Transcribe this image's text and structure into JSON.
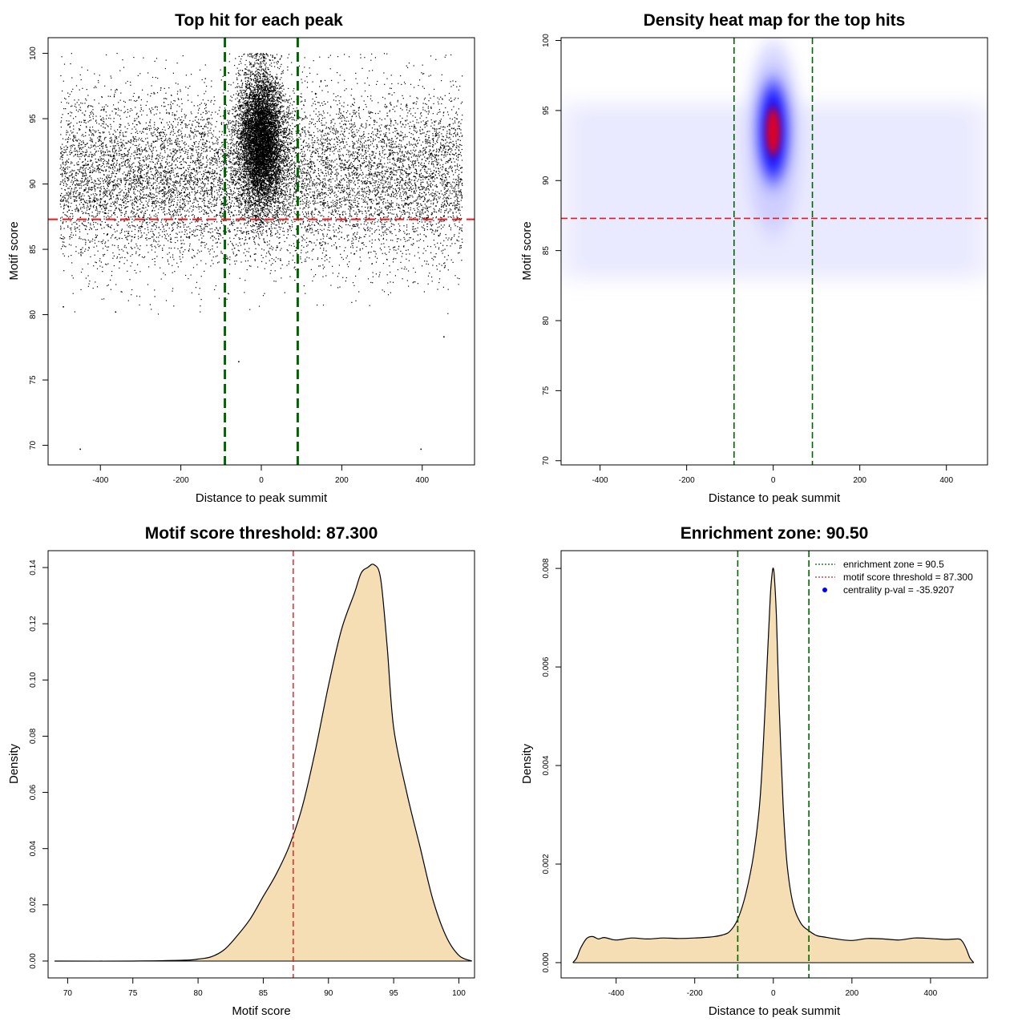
{
  "chart_data": [
    {
      "type": "scatter",
      "title": "Top hit for each peak",
      "xlabel": "Distance to peak summit",
      "ylabel": "Motif score",
      "xlim": [
        -530,
        530
      ],
      "ylim": [
        68.5,
        101.2
      ],
      "xticks": [
        -400,
        -200,
        0,
        200,
        400
      ],
      "yticks": [
        70,
        75,
        80,
        85,
        90,
        95,
        100
      ],
      "grid": false,
      "points_approx": 18000,
      "distribution": {
        "background_x_range": [
          -500,
          500
        ],
        "background_score_mean": 90.5,
        "background_score_sd": 3.3,
        "center_x_sd": 28,
        "center_score_mean": 93.3,
        "center_score_sd": 2.6,
        "center_fraction": 0.42
      },
      "outliers": [
        {
          "x": -450,
          "y": 69.7
        },
        {
          "x": 397,
          "y": 69.7
        },
        {
          "x": -56,
          "y": 76.4
        },
        {
          "x": 454,
          "y": 78.3
        },
        {
          "x": -492,
          "y": 80.6
        },
        {
          "x": -362,
          "y": 80.2
        }
      ],
      "vlines": [
        -90.5,
        90.5
      ],
      "hline": 87.3,
      "colors": {
        "points": "#000000",
        "vlines": "#006400",
        "hline": "#e41a1c"
      }
    },
    {
      "type": "heatmap",
      "title": "Density heat map for the top hits",
      "xlabel": "Distance to peak summit",
      "ylabel": "Motif score",
      "xlim": [
        -490,
        495
      ],
      "ylim": [
        69.7,
        100.2
      ],
      "xticks": [
        -400,
        -200,
        0,
        200,
        400
      ],
      "yticks": [
        70,
        75,
        80,
        85,
        90,
        95,
        100
      ],
      "grid": false,
      "density_peak": {
        "x": 0,
        "y": 93.5
      },
      "vlines": [
        -90.5,
        90.5
      ],
      "hline": 87.3,
      "colors": {
        "low": "#ffffff",
        "mid": "#0000ff",
        "high": "#ff0000",
        "vlines": "#006400",
        "hline": "#e41a1c"
      }
    },
    {
      "type": "area",
      "title": "Motif score threshold: 87.300",
      "xlabel": "Motif score",
      "ylabel": "Density",
      "xlim": [
        68.5,
        101.2
      ],
      "ylim": [
        -0.006,
        0.146
      ],
      "xticks": [
        70,
        75,
        80,
        85,
        90,
        95,
        100
      ],
      "yticks": [
        0.0,
        0.02,
        0.04,
        0.06,
        0.08,
        0.1,
        0.12,
        0.14
      ],
      "ytick_labels": [
        "0.00",
        "0.02",
        "0.04",
        "0.06",
        "0.08",
        "0.10",
        "0.12",
        "0.14"
      ],
      "grid": false,
      "x": [
        69,
        75,
        79,
        80,
        81,
        82,
        83,
        84,
        85,
        86,
        87,
        88,
        89,
        90,
        91,
        92,
        92.5,
        93,
        93.5,
        94,
        94.5,
        95,
        96,
        97,
        98,
        99,
        100,
        101
      ],
      "y": [
        0,
        0,
        0.0003,
        0.0007,
        0.0015,
        0.004,
        0.009,
        0.015,
        0.023,
        0.031,
        0.041,
        0.055,
        0.075,
        0.098,
        0.118,
        0.131,
        0.138,
        0.14,
        0.141,
        0.136,
        0.112,
        0.083,
        0.06,
        0.041,
        0.022,
        0.009,
        0.002,
        0
      ],
      "vline": 87.3,
      "colors": {
        "fill": "#f5deb3",
        "line": "#000000",
        "vline": "#e41a1c"
      }
    },
    {
      "type": "area",
      "title": "Enrichment zone: 90.50",
      "xlabel": "Distance to peak summit",
      "ylabel": "Density",
      "xlim": [
        -540,
        545
      ],
      "ylim": [
        -0.00031,
        0.00836
      ],
      "xticks": [
        -400,
        -200,
        0,
        200,
        400
      ],
      "yticks": [
        0.0,
        0.002,
        0.004,
        0.006,
        0.008
      ],
      "ytick_labels": [
        "0.000",
        "0.002",
        "0.004",
        "0.006",
        "0.008"
      ],
      "grid": false,
      "x": [
        -510,
        -500,
        -490,
        -475,
        -460,
        -445,
        -430,
        -400,
        -360,
        -320,
        -280,
        -240,
        -200,
        -160,
        -130,
        -110,
        -90,
        -70,
        -50,
        -35,
        -25,
        -15,
        -8,
        -3,
        0,
        3,
        8,
        15,
        25,
        35,
        50,
        70,
        90,
        110,
        130,
        160,
        200,
        240,
        280,
        320,
        360,
        400,
        440,
        470,
        480,
        490,
        500,
        510
      ],
      "y": [
        0.0,
        0.0001,
        0.0003,
        0.00049,
        0.00053,
        0.00048,
        0.00051,
        0.00046,
        0.0005,
        0.00048,
        0.0005,
        0.00049,
        0.0005,
        0.00052,
        0.00056,
        0.00064,
        0.00089,
        0.0014,
        0.0022,
        0.0032,
        0.0045,
        0.0062,
        0.0074,
        0.0079,
        0.008,
        0.0078,
        0.007,
        0.0052,
        0.0032,
        0.002,
        0.0012,
        0.0008,
        0.00065,
        0.00055,
        0.00052,
        0.00048,
        0.00045,
        0.00049,
        0.00048,
        0.00046,
        0.0005,
        0.00049,
        0.00047,
        0.00048,
        0.00044,
        0.0003,
        0.0001,
        0.0
      ],
      "vlines": [
        -90.5,
        90.5
      ],
      "legend": {
        "position": "top-right",
        "items": [
          {
            "label": "enrichment zone = 90.5",
            "symbol": "dotted-line",
            "color": "#006400"
          },
          {
            "label": "motif score threshold = 87.300",
            "symbol": "dotted-line",
            "color": "#e41a1c"
          },
          {
            "label": "centrality p-val = -35.9207",
            "symbol": "dot",
            "color": "#0000ff"
          }
        ]
      },
      "colors": {
        "fill": "#f5deb3",
        "line": "#000000",
        "vlines": "#006400"
      }
    }
  ]
}
